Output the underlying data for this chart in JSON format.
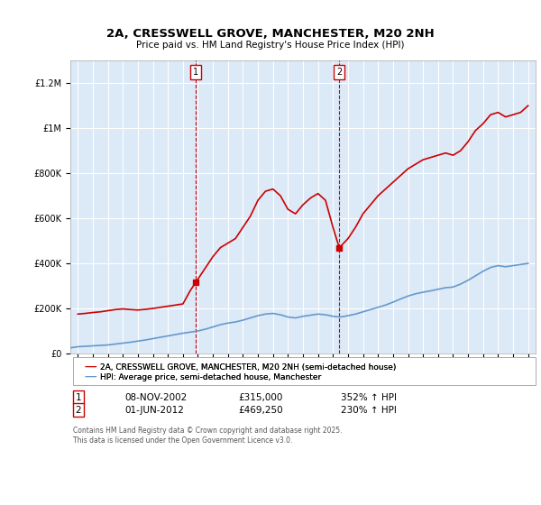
{
  "title": "2A, CRESSWELL GROVE, MANCHESTER, M20 2NH",
  "subtitle": "Price paid vs. HM Land Registry's House Price Index (HPI)",
  "background_color": "#ffffff",
  "plot_bg_color": "#dce9f7",
  "legend1": "2A, CRESSWELL GROVE, MANCHESTER, M20 2NH (semi-detached house)",
  "legend2": "HPI: Average price, semi-detached house, Manchester",
  "annotation1_label": "1",
  "annotation1_date": "08-NOV-2002",
  "annotation1_price": "£315,000",
  "annotation1_hpi": "352% ↑ HPI",
  "annotation2_label": "2",
  "annotation2_date": "01-JUN-2012",
  "annotation2_price": "£469,250",
  "annotation2_hpi": "230% ↑ HPI",
  "footer": "Contains HM Land Registry data © Crown copyright and database right 2025.\nThis data is licensed under the Open Government Licence v3.0.",
  "vline1_x": 2002.85,
  "vline2_x": 2012.42,
  "marker1_x": 2002.85,
  "marker1_y": 315000,
  "marker2_x": 2012.42,
  "marker2_y": 469250,
  "ylim": [
    0,
    1300000
  ],
  "xlim": [
    1994.5,
    2025.5
  ],
  "red_line_color": "#cc0000",
  "blue_line_color": "#6699cc",
  "vline_color": "#cc0000",
  "grid_color": "#ffffff",
  "red_data": {
    "x": [
      1995.0,
      1995.5,
      1996.0,
      1996.5,
      1997.0,
      1997.5,
      1998.0,
      1998.5,
      1999.0,
      1999.5,
      2000.0,
      2000.5,
      2001.0,
      2001.5,
      2002.0,
      2002.5,
      2002.85,
      2003.0,
      2003.5,
      2004.0,
      2004.5,
      2005.0,
      2005.5,
      2006.0,
      2006.5,
      2007.0,
      2007.5,
      2008.0,
      2008.5,
      2009.0,
      2009.5,
      2010.0,
      2010.5,
      2011.0,
      2011.5,
      2012.0,
      2012.42,
      2013.0,
      2013.5,
      2014.0,
      2014.5,
      2015.0,
      2015.5,
      2016.0,
      2016.5,
      2017.0,
      2017.5,
      2018.0,
      2018.5,
      2019.0,
      2019.5,
      2020.0,
      2020.5,
      2021.0,
      2021.5,
      2022.0,
      2022.5,
      2023.0,
      2023.5,
      2024.0,
      2024.5,
      2025.0
    ],
    "y": [
      175000,
      178000,
      182000,
      185000,
      190000,
      195000,
      198000,
      195000,
      193000,
      196000,
      200000,
      205000,
      210000,
      215000,
      220000,
      280000,
      315000,
      330000,
      380000,
      430000,
      470000,
      490000,
      510000,
      560000,
      610000,
      680000,
      720000,
      730000,
      700000,
      640000,
      620000,
      660000,
      690000,
      710000,
      680000,
      560000,
      469250,
      510000,
      560000,
      620000,
      660000,
      700000,
      730000,
      760000,
      790000,
      820000,
      840000,
      860000,
      870000,
      880000,
      890000,
      880000,
      900000,
      940000,
      990000,
      1020000,
      1060000,
      1070000,
      1050000,
      1060000,
      1070000,
      1100000
    ]
  },
  "blue_data": {
    "x": [
      1994.5,
      1995.0,
      1995.5,
      1996.0,
      1996.5,
      1997.0,
      1997.5,
      1998.0,
      1998.5,
      1999.0,
      1999.5,
      2000.0,
      2000.5,
      2001.0,
      2001.5,
      2002.0,
      2002.5,
      2003.0,
      2003.5,
      2004.0,
      2004.5,
      2005.0,
      2005.5,
      2006.0,
      2006.5,
      2007.0,
      2007.5,
      2008.0,
      2008.5,
      2009.0,
      2009.5,
      2010.0,
      2010.5,
      2011.0,
      2011.5,
      2012.0,
      2012.5,
      2013.0,
      2013.5,
      2014.0,
      2014.5,
      2015.0,
      2015.5,
      2016.0,
      2016.5,
      2017.0,
      2017.5,
      2018.0,
      2018.5,
      2019.0,
      2019.5,
      2020.0,
      2020.5,
      2021.0,
      2021.5,
      2022.0,
      2022.5,
      2023.0,
      2023.5,
      2024.0,
      2024.5,
      2025.0
    ],
    "y": [
      25000,
      30000,
      32000,
      34000,
      36000,
      38000,
      42000,
      46000,
      50000,
      55000,
      60000,
      66000,
      72000,
      78000,
      84000,
      90000,
      95000,
      100000,
      108000,
      118000,
      128000,
      135000,
      140000,
      148000,
      158000,
      168000,
      175000,
      178000,
      172000,
      162000,
      158000,
      165000,
      170000,
      175000,
      172000,
      165000,
      162000,
      168000,
      175000,
      185000,
      195000,
      205000,
      215000,
      228000,
      242000,
      255000,
      265000,
      272000,
      278000,
      285000,
      292000,
      295000,
      308000,
      325000,
      345000,
      365000,
      382000,
      390000,
      385000,
      390000,
      395000,
      400000
    ]
  }
}
